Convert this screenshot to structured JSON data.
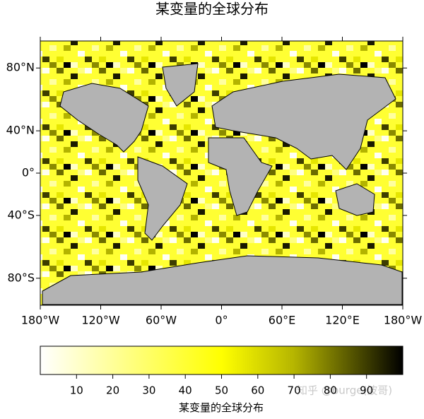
{
  "chart_data": {
    "type": "map",
    "title": "某变量的全球分布",
    "xlim": [
      -180,
      180
    ],
    "xticks": [
      {
        "value": -180,
        "label": "180°W"
      },
      {
        "value": -120,
        "label": "120°W"
      },
      {
        "value": -60,
        "label": "60°W"
      },
      {
        "value": 0,
        "label": "0°"
      },
      {
        "value": 60,
        "label": "60°E"
      },
      {
        "value": 120,
        "label": "120°E"
      },
      {
        "value": 180,
        "label": "180°W"
      }
    ],
    "ylim": [
      -90,
      90
    ],
    "yticks": [
      {
        "value": 80,
        "label": "80°N"
      },
      {
        "value": 40,
        "label": "40°N"
      },
      {
        "value": 0,
        "label": "0°"
      },
      {
        "value": -40,
        "label": "40°S"
      },
      {
        "value": -80,
        "label": "80°S"
      }
    ],
    "colorbar": {
      "label": "某变量的全球分布",
      "lim": [
        0,
        100
      ],
      "ticks": [
        10,
        20,
        30,
        40,
        50,
        60,
        70,
        80,
        90
      ]
    },
    "watermark": "知乎 @burge(波哥)"
  }
}
